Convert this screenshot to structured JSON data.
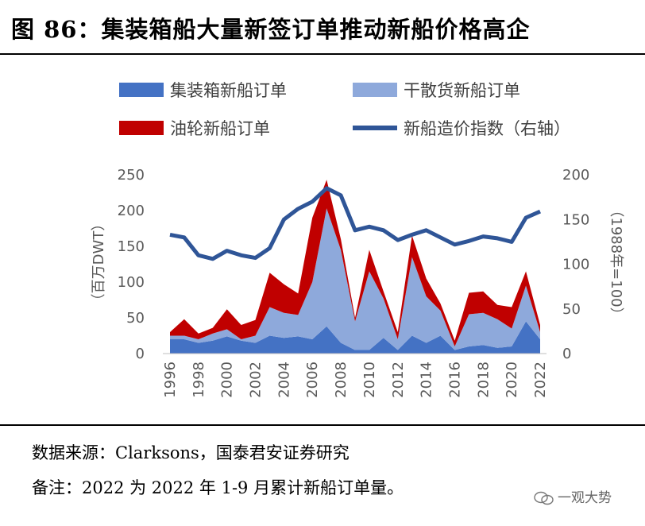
{
  "header": {
    "title": "图 86：集装箱船大量新签订单推动新船价格高企"
  },
  "footer": {
    "source": "数据来源：Clarksons，国泰君安证券研究",
    "note": "备注：2022 为 2022 年 1-9 月累计新船订单量。"
  },
  "watermark": {
    "text": "一观大势"
  },
  "chart_data": {
    "type": "area",
    "stacked": true,
    "x": [
      1996,
      1997,
      1998,
      1999,
      2000,
      2001,
      2002,
      2003,
      2004,
      2005,
      2006,
      2007,
      2008,
      2009,
      2010,
      2011,
      2012,
      2013,
      2014,
      2015,
      2016,
      2017,
      2018,
      2019,
      2020,
      2021,
      2022
    ],
    "series": [
      {
        "name": "集装箱新船订单",
        "color": "#4472C4",
        "values": [
          20,
          20,
          15,
          18,
          24,
          18,
          15,
          25,
          22,
          24,
          20,
          38,
          15,
          5,
          5,
          22,
          5,
          25,
          15,
          25,
          5,
          10,
          12,
          8,
          10,
          45,
          20
        ]
      },
      {
        "name": "干散货新船订单",
        "color": "#8EA9DB",
        "values": [
          5,
          5,
          5,
          10,
          10,
          2,
          10,
          40,
          35,
          30,
          80,
          165,
          130,
          40,
          110,
          55,
          15,
          110,
          65,
          35,
          5,
          45,
          45,
          40,
          25,
          50,
          10
        ]
      },
      {
        "name": "油轮新船订单",
        "color": "#C00000",
        "values": [
          5,
          23,
          8,
          8,
          28,
          20,
          22,
          48,
          40,
          30,
          90,
          40,
          15,
          5,
          30,
          10,
          10,
          30,
          25,
          10,
          8,
          30,
          30,
          20,
          30,
          20,
          10
        ]
      }
    ],
    "line": {
      "name": "新船造价指数（右轴）",
      "color": "#2F5597",
      "values": [
        133,
        130,
        110,
        106,
        115,
        110,
        107,
        118,
        150,
        162,
        170,
        185,
        177,
        138,
        142,
        138,
        127,
        133,
        138,
        130,
        122,
        126,
        131,
        129,
        125,
        152,
        159
      ]
    },
    "xticks": [
      "1996",
      "1998",
      "2000",
      "2002",
      "2004",
      "2006",
      "2008",
      "2010",
      "2012",
      "2014",
      "2016",
      "2018",
      "2020",
      "2022"
    ],
    "yticks_left": [
      "0",
      "50",
      "100",
      "150",
      "200",
      "250"
    ],
    "yticks_right": [
      "0",
      "50",
      "100",
      "150",
      "200"
    ],
    "ylim_left": [
      0,
      250
    ],
    "ylim_right": [
      0,
      200
    ],
    "ylabel_left": "（百万DWT）",
    "ylabel_right": "（1988年=100）",
    "legend": [
      "集装箱新船订单",
      "干散货新船订单",
      "油轮新船订单",
      "新船造价指数（右轴）"
    ]
  }
}
